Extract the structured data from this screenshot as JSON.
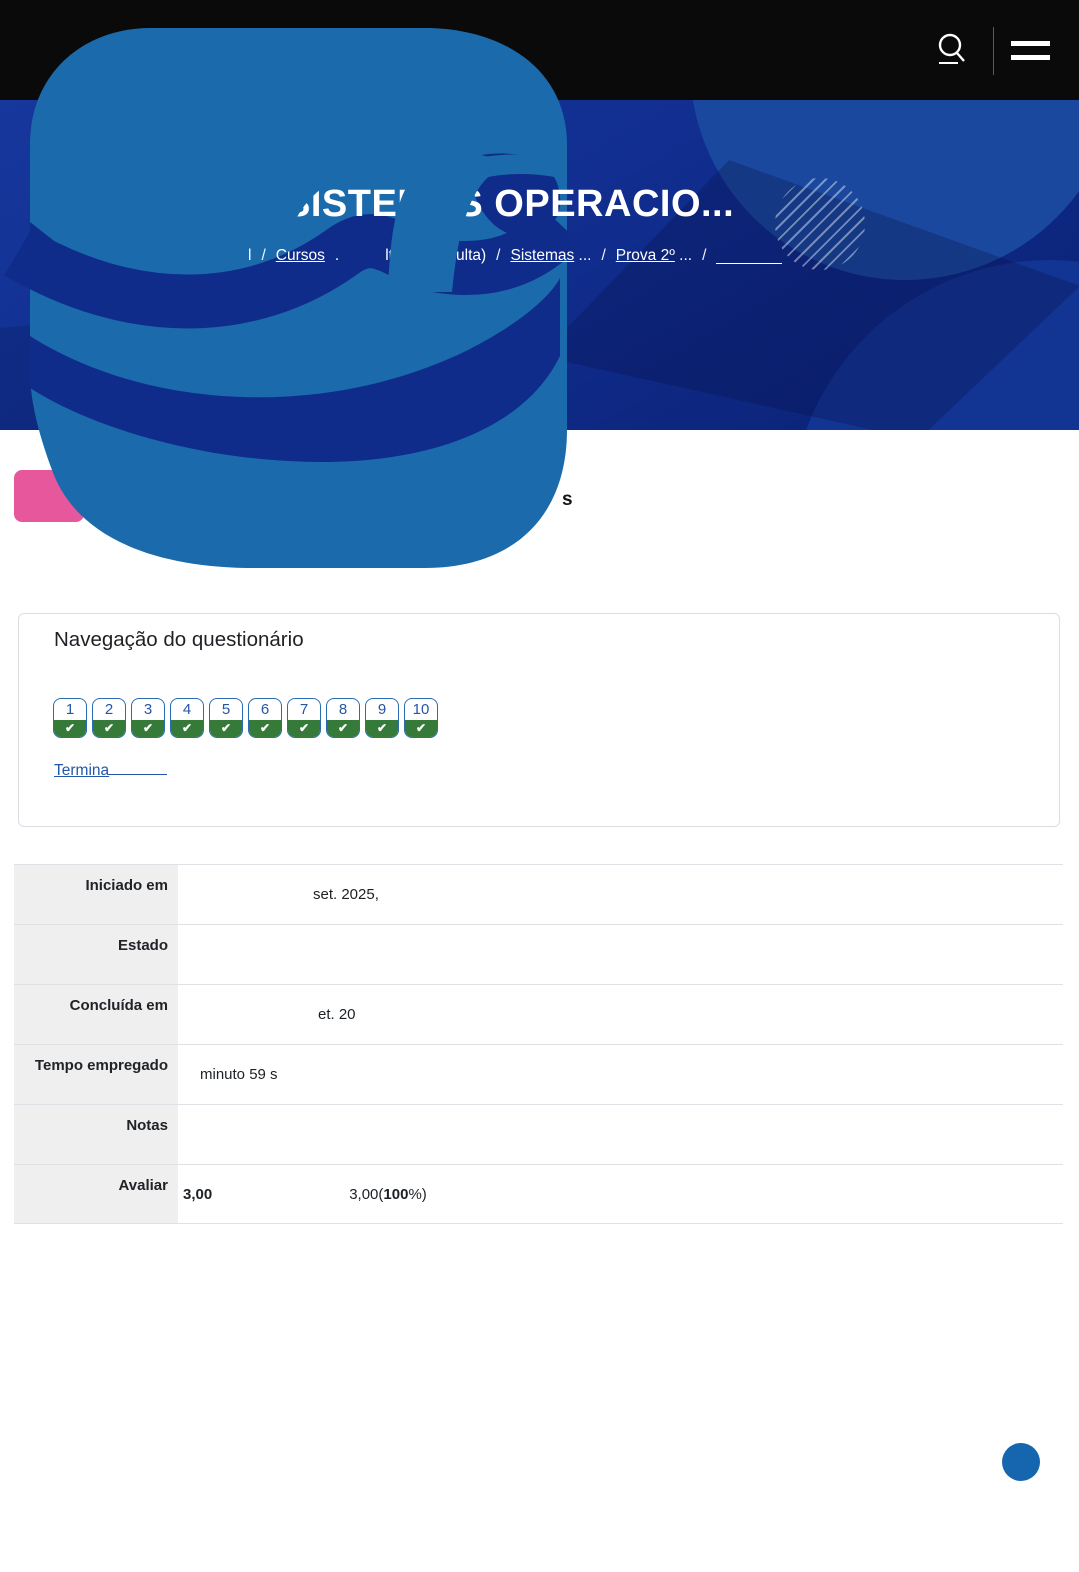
{
  "header": {
    "search_icon": "search-icon",
    "menu_icon": "menu-icon"
  },
  "hero": {
    "title": "SISTEMAS OPERACIO...",
    "separator": "/",
    "breadcrumb": [
      {
        "type": "frag",
        "label": "l"
      },
      {
        "type": "sep"
      },
      {
        "type": "link",
        "label": "Cursos"
      },
      {
        "type": "frag",
        "label": "."
      },
      {
        "type": "gap"
      },
      {
        "type": "frag",
        "label": "lta)"
      },
      {
        "type": "sep"
      },
      {
        "type": "text",
        "label": "(Oculta)"
      },
      {
        "type": "sep"
      },
      {
        "type": "link",
        "label": "Sistemas",
        "suffix": " ..."
      },
      {
        "type": "sep"
      },
      {
        "type": "link",
        "label": "Prova 2º",
        "suffix": " ..."
      },
      {
        "type": "sep"
      },
      {
        "type": "blank"
      }
    ]
  },
  "content": {
    "heading_fragment": "s"
  },
  "quiznav": {
    "title": "Navegação do questionário",
    "buttons": [
      {
        "number": "1",
        "state": "answered"
      },
      {
        "number": "2",
        "state": "answered"
      },
      {
        "number": "3",
        "state": "answered"
      },
      {
        "number": "4",
        "state": "answered"
      },
      {
        "number": "5",
        "state": "answered"
      },
      {
        "number": "6",
        "state": "answered"
      },
      {
        "number": "7",
        "state": "answered"
      },
      {
        "number": "8",
        "state": "answered"
      },
      {
        "number": "9",
        "state": "answered"
      },
      {
        "number": "10",
        "state": "answered"
      }
    ],
    "check_glyph": "✔",
    "finish_link": "Termina"
  },
  "summary": {
    "rows": [
      {
        "label": "Iniciado em",
        "value": "set. 2025,",
        "indent": 135
      },
      {
        "label": "Estado",
        "value": "",
        "indent": 0
      },
      {
        "label": "Concluída em",
        "value": "et. 20",
        "indent": 140
      },
      {
        "label": "Tempo empregado",
        "value": "minuto 59 s",
        "indent": 22
      },
      {
        "label": "Notas",
        "value": "",
        "indent": 0
      },
      {
        "label": "Avaliar",
        "value": "3,00",
        "value_bold": true,
        "indent": 5,
        "value2_prefix": "3,00(",
        "value2_bold": "100",
        "value2_suffix": "%)",
        "value2_offset": 137
      }
    ]
  },
  "colors": {
    "topbar": "#0a0a0b",
    "hero_navy": "#112e90",
    "blob_blue": "#1b6bac",
    "channel_navy": "#102c8b",
    "badge_pink": "#e7579b",
    "button_border_blue": "#2b6cb3",
    "answered_green": "#357a38",
    "link_blue": "#2457a8",
    "table_label_bg": "#efefef",
    "fab_blue": "#1566ae"
  }
}
